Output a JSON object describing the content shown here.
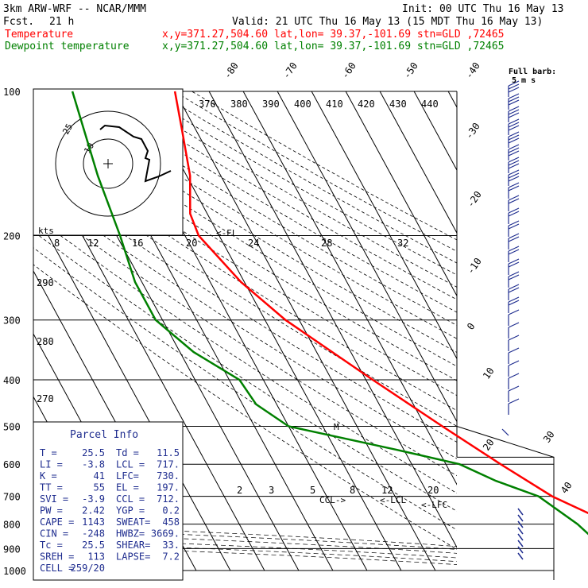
{
  "header": {
    "model": "3km ARW-WRF -- NCAR/MMM",
    "init": "Init: 00 UTC Thu 16 May 13",
    "fcst_label": "Fcst.",
    "fcst_value": "21 h",
    "valid": "Valid: 21 UTC Thu 16 May 13 (15 MDT Thu 16 May 13)",
    "lines": [
      {
        "name": "Temperature",
        "info": "x,y=371.27,504.60   lat,lon= 39.37,-101.69  stn=GLD ,72465",
        "color": "#ff0000"
      },
      {
        "name": "Dewpoint temperature",
        "info": "x,y=371.27,504.60   lat,lon= 39.37,-101.69  stn=GLD ,72465",
        "color": "#008000"
      }
    ]
  },
  "chart_data": {
    "type": "line",
    "title": "Skew-T log-P sounding",
    "pressure_labels": [
      "100",
      "200",
      "300",
      "400",
      "500",
      "600",
      "700",
      "800",
      "900",
      "1000"
    ],
    "temperature_top_labels": [
      "-80",
      "-70",
      "-60",
      "-50",
      "-40"
    ],
    "temperature_right_labels": [
      "-30",
      "-20",
      "-10",
      "0",
      "10",
      "20",
      "30",
      "40"
    ],
    "theta_labels": [
      "370",
      "380",
      "390",
      "400",
      "410",
      "420",
      "430",
      "440"
    ],
    "theta_left_labels": [
      "290",
      "280",
      "270"
    ],
    "mixing_ratio_labels_upper": [
      "8",
      "12",
      "16",
      "20",
      "24",
      "28",
      "32"
    ],
    "mixing_ratio_labels_lower": [
      "2",
      "3",
      "5",
      "8",
      "12",
      "20"
    ],
    "series": [
      {
        "name": "Temperature",
        "color": "#ff0000",
        "points": [
          [
            100,
            -40
          ],
          [
            120,
            -44
          ],
          [
            150,
            -49
          ],
          [
            180,
            -55
          ],
          [
            200,
            -56
          ],
          [
            250,
            -51
          ],
          [
            300,
            -44
          ],
          [
            400,
            -28
          ],
          [
            500,
            -15
          ],
          [
            600,
            -4
          ],
          [
            700,
            6
          ],
          [
            800,
            19
          ],
          [
            850,
            25
          ]
        ]
      },
      {
        "name": "Dewpoint temperature",
        "color": "#008000",
        "points": [
          [
            100,
            -70
          ],
          [
            150,
            -76
          ],
          [
            200,
            -79
          ],
          [
            250,
            -82
          ],
          [
            300,
            -82
          ],
          [
            350,
            -76
          ],
          [
            400,
            -67
          ],
          [
            450,
            -66
          ],
          [
            500,
            -60
          ],
          [
            560,
            -32
          ],
          [
            600,
            -16
          ],
          [
            650,
            -8
          ],
          [
            700,
            2
          ],
          [
            800,
            9
          ],
          [
            850,
            11
          ]
        ]
      }
    ],
    "annotations": {
      "el": "<-EL",
      "ccl": "CCL->",
      "lcl": "<-LCL",
      "lfc": "<-LFC",
      "m_marker": "M"
    },
    "hodograph": {
      "speed_unit": "kts",
      "rings": [
        "25",
        "10"
      ]
    },
    "full_barb_note": [
      "Full barb:",
      "5 m s"
    ]
  },
  "parcel_info": {
    "title": "Parcel Info",
    "rows": [
      [
        "T  =",
        "25.5",
        "Td =",
        "11.5"
      ],
      [
        "LI =",
        "-3.8",
        "LCL =",
        "717."
      ],
      [
        "K  =",
        "41",
        "LFC=",
        "730."
      ],
      [
        "TT =",
        "55",
        "EL  =",
        "197."
      ],
      [
        "SVI =",
        "-3.9",
        "CCL =",
        "712."
      ],
      [
        "PW =",
        "2.42",
        "YGP =",
        "0.2"
      ],
      [
        "CAPE =",
        "1143",
        "SWEAT=",
        "458"
      ],
      [
        "CIN =",
        "-248",
        "HWBZ=",
        "3669."
      ],
      [
        "Tc =",
        "25.5",
        "SHEAR=",
        "33."
      ],
      [
        "SREH =",
        "113",
        "LAPSE=",
        "7.2"
      ],
      [
        "CELL =",
        "259/20",
        "",
        ""
      ]
    ]
  }
}
